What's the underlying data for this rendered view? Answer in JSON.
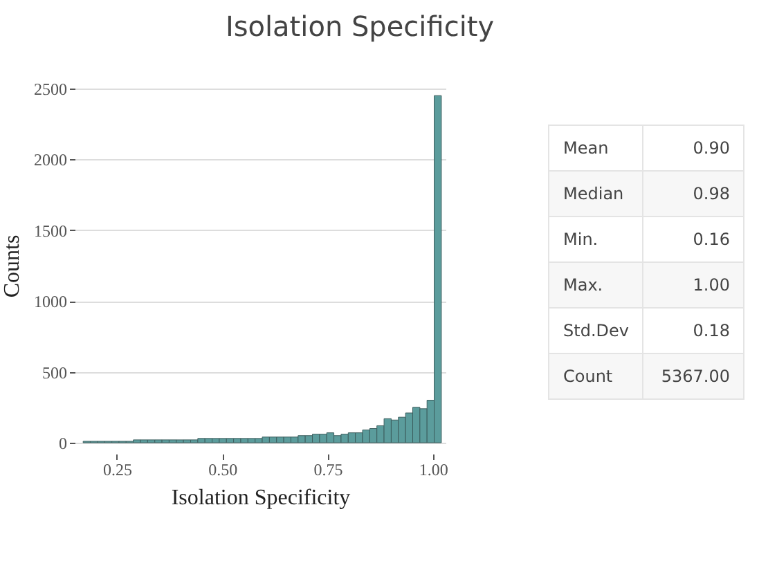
{
  "chart_data": [
    {
      "type": "histogram",
      "title": "Isolation Specificity",
      "xlabel": "Isolation Specificity",
      "ylabel": "Counts",
      "bins": [
        0.17,
        0.187,
        0.204,
        0.221,
        0.238,
        0.255,
        0.272,
        0.289,
        0.306,
        0.323,
        0.34,
        0.357,
        0.374,
        0.391,
        0.408,
        0.425,
        0.442,
        0.459,
        0.476,
        0.493,
        0.51,
        0.527,
        0.544,
        0.561,
        0.578,
        0.595,
        0.612,
        0.629,
        0.646,
        0.663,
        0.68,
        0.697,
        0.714,
        0.731,
        0.748,
        0.765,
        0.782,
        0.799,
        0.816,
        0.833,
        0.85,
        0.867,
        0.884,
        0.901,
        0.918,
        0.935,
        0.952,
        0.969,
        0.986,
        1.003,
        1.02
      ],
      "values": [
        10,
        10,
        10,
        10,
        10,
        10,
        10,
        20,
        20,
        20,
        20,
        20,
        20,
        20,
        20,
        20,
        30,
        30,
        30,
        30,
        30,
        30,
        30,
        30,
        30,
        40,
        40,
        40,
        40,
        40,
        50,
        50,
        60,
        60,
        70,
        50,
        60,
        70,
        70,
        90,
        100,
        120,
        170,
        160,
        180,
        210,
        250,
        240,
        300,
        2450
      ],
      "color": "#5b9c9c",
      "xlim": [
        0.15,
        1.03
      ],
      "xticks": [
        {
          "value": 0.25,
          "label": "0.25"
        },
        {
          "value": 0.5,
          "label": "0.50"
        },
        {
          "value": 0.75,
          "label": "0.75"
        },
        {
          "value": 1,
          "label": "1.00"
        }
      ],
      "ylim": [
        0,
        2500
      ],
      "yticks": [
        0,
        500,
        {
          "value": 1000,
          "label": "1000"
        },
        {
          "value": 1500,
          "label": "1500"
        },
        {
          "value": 2000,
          "label": "2000"
        },
        {
          "value": 2500,
          "label": "2500"
        }
      ],
      "grid": "y"
    },
    {
      "type": "other",
      "categories": [
        "Mean",
        "Median",
        "Min.",
        "Max.",
        "Std.Dev",
        "Count"
      ],
      "value_labels": [
        "0.90",
        "0.98",
        "0.16",
        "1.00",
        "0.18",
        "5367.00"
      ]
    }
  ]
}
